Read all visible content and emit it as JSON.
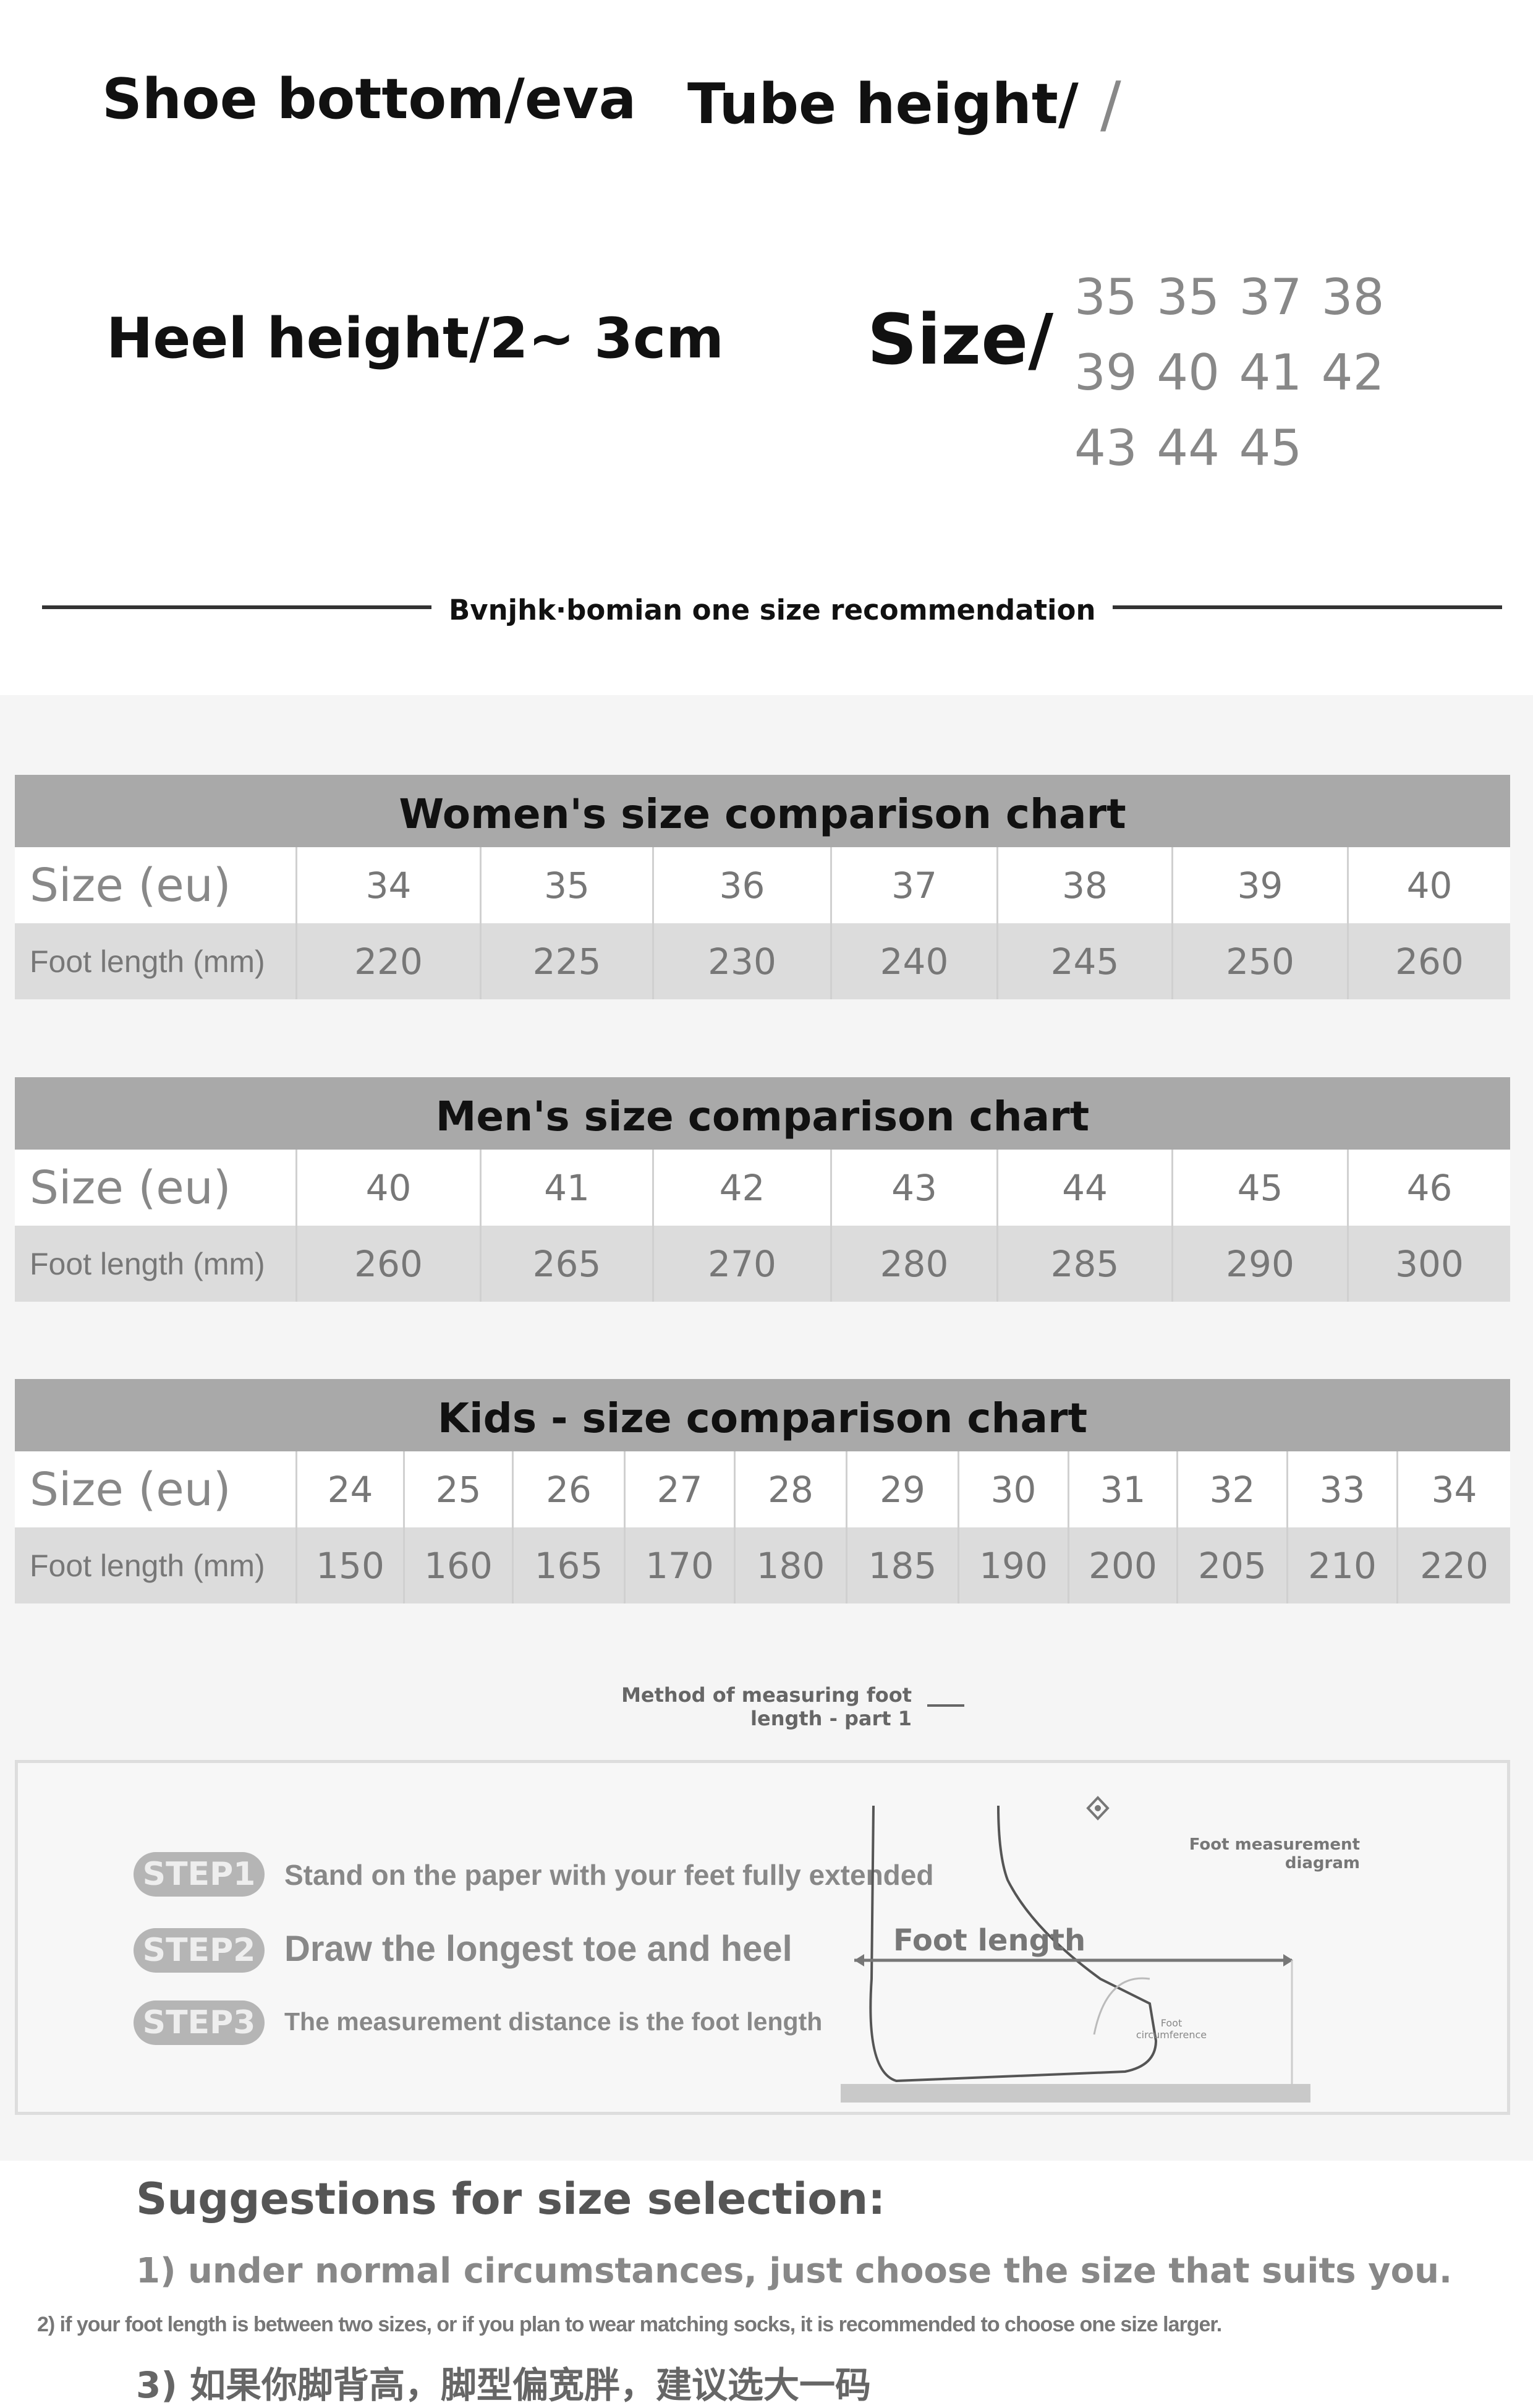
{
  "specs": {
    "sole": "Shoe bottom/eva",
    "tube": "Tube height/",
    "tube_value": "/",
    "heel": "Heel height/2~ 3cm",
    "size_label": "Size/",
    "size_values": "35 35 37 38 39 40 41 42 43 44 45"
  },
  "recommendation_title": "Bvnjhk·bomian one size recommendation",
  "tables": [
    {
      "title": "Women's size comparison chart",
      "row1_label": "Size (eu)",
      "row2_label": "Foot length (mm)",
      "sizes": [
        "34",
        "35",
        "36",
        "37",
        "38",
        "39",
        "40"
      ],
      "lengths": [
        "220",
        "225",
        "230",
        "240",
        "245",
        "250",
        "260"
      ]
    },
    {
      "title": "Men's size comparison chart",
      "row1_label": "Size (eu)",
      "row2_label": "Foot length (mm)",
      "sizes": [
        "40",
        "41",
        "42",
        "43",
        "44",
        "45",
        "46"
      ],
      "lengths": [
        "260",
        "265",
        "270",
        "280",
        "285",
        "290",
        "300"
      ]
    },
    {
      "title": "Kids - size comparison chart",
      "row1_label": "Size (eu)",
      "row2_label": "Foot length (mm)",
      "sizes": [
        "24",
        "25",
        "26",
        "27",
        "28",
        "29",
        "30",
        "31",
        "32",
        "33",
        "34"
      ],
      "lengths": [
        "150",
        "160",
        "165",
        "170",
        "180",
        "185",
        "190",
        "200",
        "205",
        "210",
        "220"
      ]
    }
  ],
  "method": {
    "title": "Method of measuring foot length - part 1",
    "steps": [
      {
        "badge": "STEP1",
        "text": "Stand on the paper with your feet fully extended"
      },
      {
        "badge": "STEP2",
        "text": "Draw the longest toe and heel"
      },
      {
        "badge": "STEP3",
        "text": "The measurement distance is the foot length"
      }
    ],
    "diagram_title": "Foot measurement diagram",
    "foot_length_label": "Foot length",
    "foot_circumference_label": "Foot circumference"
  },
  "suggestions": {
    "title": "Suggestions for size selection:",
    "items": [
      "1) under normal circumstances, just choose the size that suits you.",
      "2) if your foot length is between two sizes, or if you plan to wear matching socks, it is recommended to choose one size larger.",
      "3) 如果你脚背高，脚型偏宽胖，建议选大一码"
    ]
  }
}
